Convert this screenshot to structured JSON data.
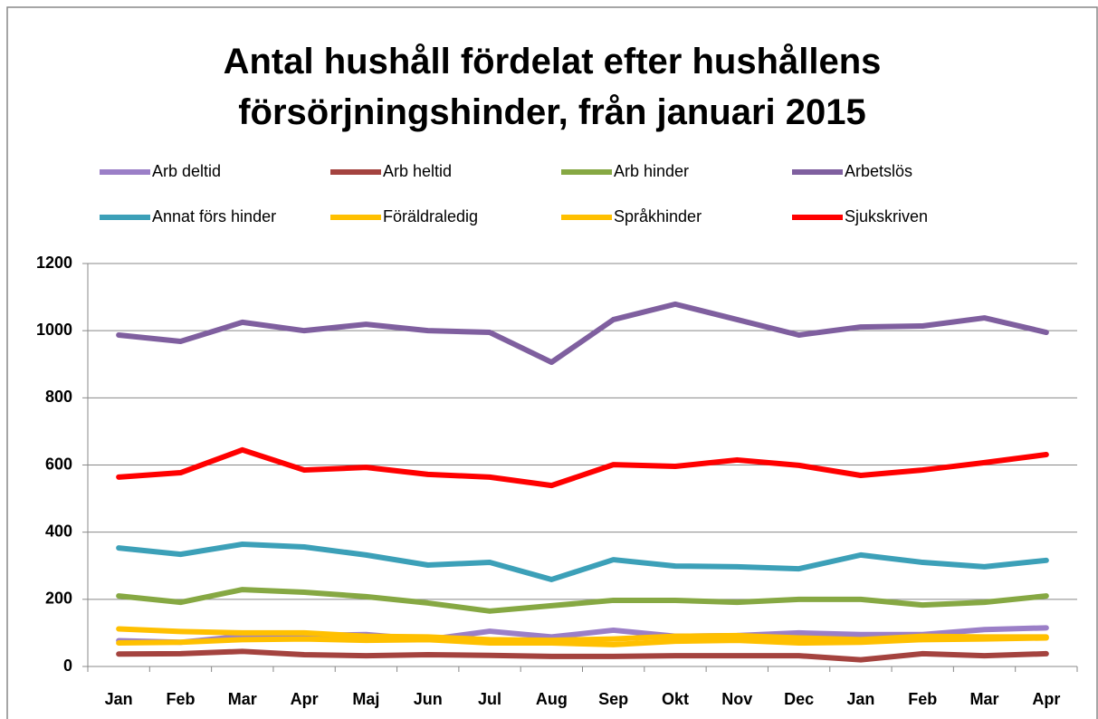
{
  "chart_data": {
    "type": "line",
    "title": "Antal hushåll fördelat efter hushållens försörjningshinder, från januari 2015",
    "categories": [
      "Jan",
      "Feb",
      "Mar",
      "Apr",
      "Maj",
      "Jun",
      "Jul",
      "Aug",
      "Sep",
      "Okt",
      "Nov",
      "Dec",
      "Jan",
      "Feb",
      "Mar",
      "Apr"
    ],
    "series": [
      {
        "name": "Arb deltid",
        "color": "#9b7fc7",
        "values": [
          77,
          72,
          90,
          92,
          95,
          80,
          105,
          88,
          108,
          90,
          92,
          100,
          95,
          95,
          110,
          115
        ]
      },
      {
        "name": "Arb heltid",
        "color": "#a4433f",
        "values": [
          37,
          38,
          45,
          35,
          32,
          35,
          33,
          30,
          30,
          32,
          32,
          32,
          20,
          38,
          32,
          38
        ]
      },
      {
        "name": "Arb hinder",
        "color": "#86a843",
        "values": [
          210,
          191,
          229,
          221,
          208,
          189,
          165,
          181,
          197,
          197,
          191,
          200,
          200,
          183,
          191,
          210
        ]
      },
      {
        "name": "Arbetslös",
        "color": "#7f5f9f",
        "values": [
          987,
          968,
          1025,
          1000,
          1019,
          1000,
          995,
          906,
          1033,
          1079,
          1033,
          987,
          1011,
          1014,
          1038,
          995
        ]
      },
      {
        "name": "Annat förs hinder",
        "color": "#3ca0b8",
        "values": [
          353,
          334,
          364,
          356,
          332,
          302,
          310,
          259,
          318,
          299,
          297,
          291,
          332,
          310,
          297,
          316
        ]
      },
      {
        "name": "Föräldraledig",
        "color": "#ffc000",
        "values": [
          112,
          104,
          100,
          100,
          90,
          88,
          80,
          78,
          82,
          90,
          92,
          85,
          80,
          90,
          88,
          88
        ]
      },
      {
        "name": "Språkhinder",
        "color": "#ffc000",
        "values": [
          70,
          72,
          80,
          82,
          78,
          80,
          70,
          70,
          65,
          75,
          78,
          70,
          72,
          80,
          82,
          85
        ]
      },
      {
        "name": "Sjukskriven",
        "color": "#ff0000",
        "values": [
          564,
          577,
          645,
          585,
          593,
          572,
          564,
          539,
          601,
          596,
          615,
          599,
          569,
          585,
          607,
          631
        ]
      }
    ],
    "ylim": [
      0,
      1200
    ],
    "yticks": [
      0,
      200,
      400,
      600,
      800,
      1000,
      1200
    ],
    "grid": true
  }
}
